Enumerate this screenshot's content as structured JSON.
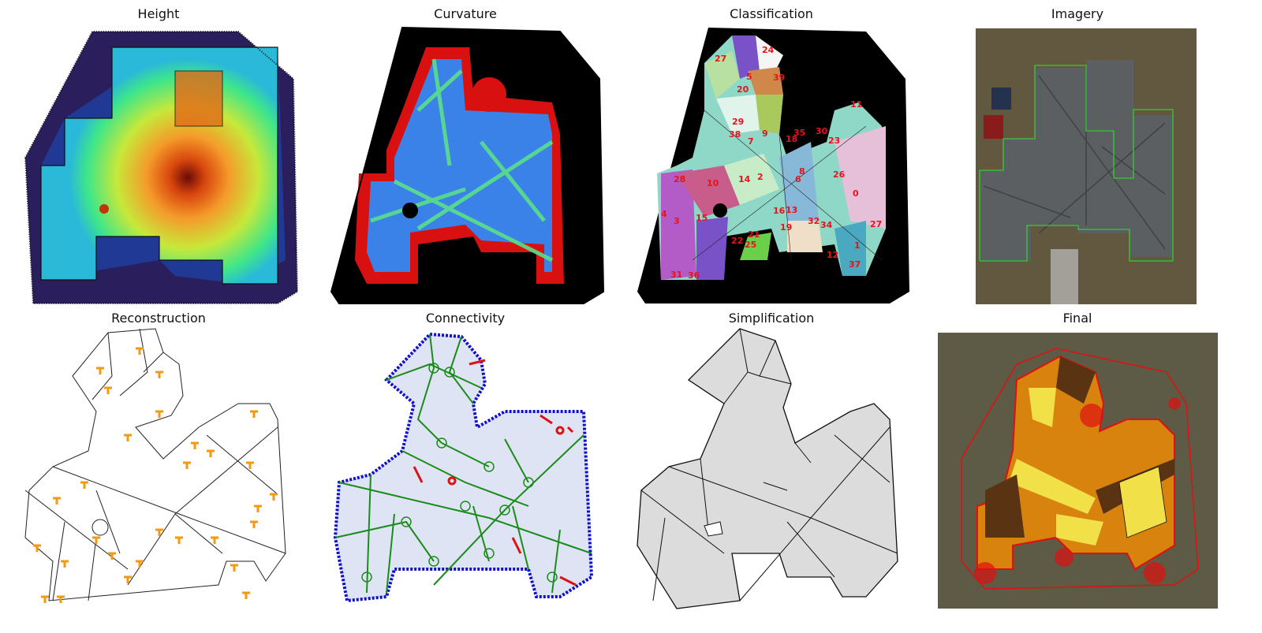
{
  "panels": {
    "height": "Height",
    "curvature": "Curvature",
    "classification": "Classification",
    "imagery": "Imagery",
    "reconstruction": "Reconstruction",
    "connectivity": "Connectivity",
    "simplification": "Simplification",
    "final": "Final"
  },
  "segment_labels": [
    "27",
    "24",
    "5",
    "39",
    "20",
    "11",
    "29",
    "9",
    "35",
    "30",
    "38",
    "7",
    "18",
    "23",
    "8",
    "26",
    "28",
    "10",
    "14",
    "2",
    "6",
    "0",
    "4",
    "15",
    "16",
    "13",
    "19",
    "32",
    "34",
    "27",
    "3",
    "21",
    "22",
    "25",
    "12",
    "37",
    "31",
    "36",
    "1"
  ],
  "colors": {
    "building_outline": "#111111",
    "imagery_outline": "#33cc33",
    "final_outline": "#e01010",
    "ridge_marks": "#f29a12",
    "connectivity_graph": "#1a8c1a",
    "boundary_points": "#1010cc",
    "label_text": "#e8121b",
    "roof_fill": "#dcdcdc"
  }
}
